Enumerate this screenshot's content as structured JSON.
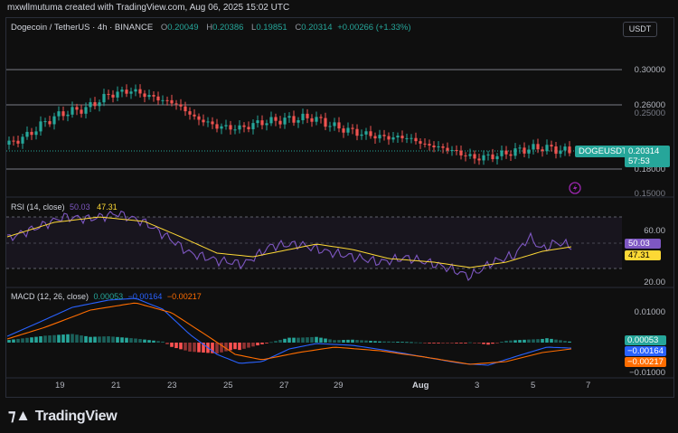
{
  "header": {
    "attribution": "mxwllmutuma created with TradingView.com, Aug 06, 2025 15:02 UTC"
  },
  "symbol": {
    "name": "Dogecoin / TetherUS · 4h · BINANCE",
    "open_label": "O",
    "open": "0.20049",
    "high_label": "H",
    "high": "0.20386",
    "low_label": "L",
    "low": "0.19851",
    "close_label": "C",
    "close": "0.20314",
    "change": "+0.00266 (+1.33%)"
  },
  "currency_button": "USDT",
  "price_scale": {
    "labels": [
      "0.30000",
      "0.26000",
      "0.25000",
      "0.18000",
      "0.15000"
    ],
    "current_tag": "DOGEUSDT",
    "current_price": "0.20314",
    "countdown": "57:53"
  },
  "rsi": {
    "label": "RSI (14, close)",
    "value1": "50.03",
    "value2": "47.31",
    "levels": [
      "60.00",
      "20.00"
    ]
  },
  "macd": {
    "label": "MACD (12, 26, close)",
    "v1": "0.00053",
    "v2": "−0.00164",
    "v3": "−0.00217",
    "levels": [
      "0.01000",
      "−0.01000"
    ]
  },
  "x_axis": {
    "labels": [
      "19",
      "21",
      "23",
      "25",
      "27",
      "29",
      "Aug",
      "3",
      "5",
      "7"
    ]
  },
  "footer": {
    "brand": "TradingView"
  },
  "colors": {
    "up": "#26a69a",
    "down": "#ef5350",
    "rsi": "#7e57c2",
    "rsi_ma": "#fdd835",
    "macd": "#2962ff",
    "signal": "#ff6d00",
    "hist_up": "#26a69a",
    "hist_down": "#ff5252"
  }
}
